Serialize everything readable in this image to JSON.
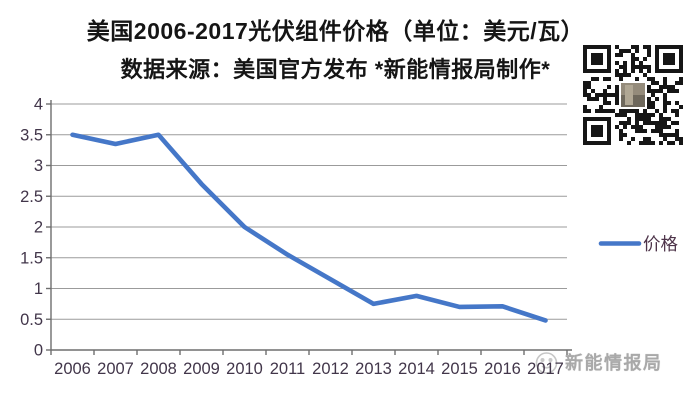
{
  "header": {
    "title": "美国2006-2017光伏组件价格（单位：美元/瓦）",
    "subtitle": "数据来源：美国官方发布  *新能情报局制作*"
  },
  "chart_data": {
    "type": "line",
    "title": "美国2006-2017光伏组件价格（单位：美元/瓦）",
    "categories": [
      "2006",
      "2007",
      "2008",
      "2009",
      "2010",
      "2011",
      "2012",
      "2013",
      "2014",
      "2015",
      "2016",
      "2017"
    ],
    "series": [
      {
        "name": "价格",
        "color": "#4577c8",
        "values": [
          3.5,
          3.35,
          3.5,
          2.7,
          2.0,
          1.55,
          1.15,
          0.75,
          0.88,
          0.7,
          0.71,
          0.48
        ]
      }
    ],
    "ylim": [
      0,
      4
    ],
    "yticks": [
      "0",
      "0.5",
      "1",
      "1.5",
      "2",
      "2.5",
      "3",
      "3.5",
      "4"
    ],
    "xlabel": "",
    "ylabel": "",
    "grid": true,
    "legend_position": "right"
  },
  "watermark": {
    "text": "新能情报局"
  },
  "colors": {
    "line": "#4577c8",
    "grid": "#9b9b9b",
    "axis": "#6e6e6e",
    "tick_label": "#42364a",
    "legend_text": "#4d3349",
    "title": "#151515",
    "watermark": "#a9a9a9",
    "qr_dark": "#161616"
  }
}
